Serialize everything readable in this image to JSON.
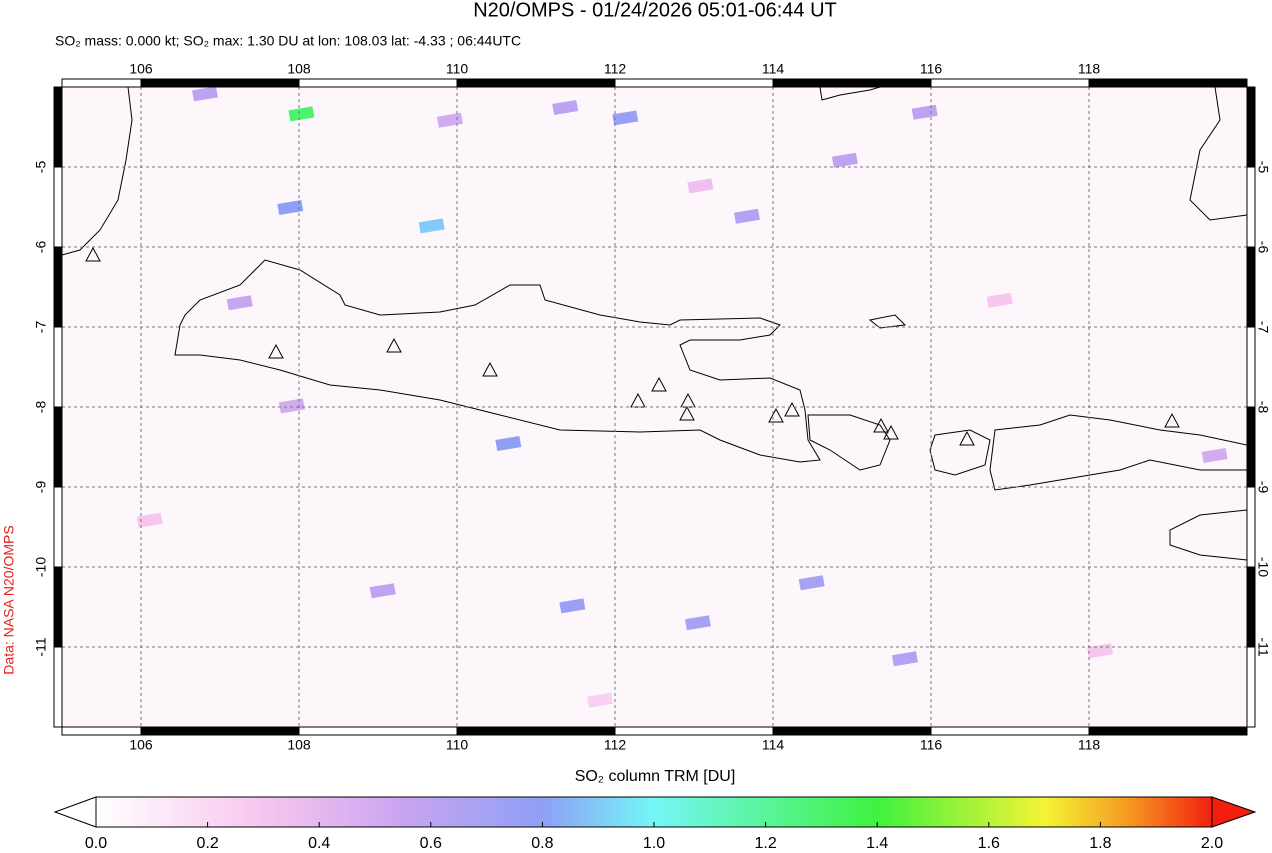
{
  "map": {
    "title": "N20/OMPS - 01/24/2026 05:01-06:44 UT",
    "subtitle": "SO₂ mass: 0.000 kt; SO₂ max: 1.30 DU at lon: 108.03 lat: -4.33 ; 06:44UTC",
    "credit": "Data: NASA N20/OMPS",
    "xlim": [
      105,
      120
    ],
    "ylim": [
      -12,
      -4
    ],
    "xticks": [
      106,
      108,
      110,
      112,
      114,
      116,
      118
    ],
    "yticks": [
      -5,
      -6,
      -7,
      -8,
      -9,
      -10,
      -11
    ],
    "grid": true,
    "pixels": [
      {
        "lon": 108.03,
        "lat": -4.33,
        "value": 1.3
      },
      {
        "lon": 109.68,
        "lat": -5.73,
        "value": 0.9
      },
      {
        "lon": 107.89,
        "lat": -5.5,
        "value": 0.8
      },
      {
        "lon": 110.65,
        "lat": -8.45,
        "value": 0.8
      },
      {
        "lon": 111.46,
        "lat": -10.48,
        "value": 0.75
      },
      {
        "lon": 112.13,
        "lat": -4.38,
        "value": 0.75
      },
      {
        "lon": 113.05,
        "lat": -10.69,
        "value": 0.7
      },
      {
        "lon": 114.49,
        "lat": -10.19,
        "value": 0.7
      },
      {
        "lon": 115.67,
        "lat": -11.14,
        "value": 0.65
      },
      {
        "lon": 113.67,
        "lat": -5.61,
        "value": 0.65
      },
      {
        "lon": 111.37,
        "lat": -4.25,
        "value": 0.6
      },
      {
        "lon": 115.92,
        "lat": -4.31,
        "value": 0.6
      },
      {
        "lon": 114.91,
        "lat": -4.91,
        "value": 0.6
      },
      {
        "lon": 106.81,
        "lat": -4.08,
        "value": 0.6
      },
      {
        "lon": 107.25,
        "lat": -6.69,
        "value": 0.55
      },
      {
        "lon": 109.06,
        "lat": -10.29,
        "value": 0.6
      },
      {
        "lon": 109.91,
        "lat": -4.41,
        "value": 0.5
      },
      {
        "lon": 107.91,
        "lat": -7.98,
        "value": 0.5
      },
      {
        "lon": 119.59,
        "lat": -8.6,
        "value": 0.5
      },
      {
        "lon": 113.08,
        "lat": -5.23,
        "value": 0.35
      },
      {
        "lon": 116.87,
        "lat": -6.66,
        "value": 0.3
      },
      {
        "lon": 106.11,
        "lat": -9.41,
        "value": 0.3
      },
      {
        "lon": 118.14,
        "lat": -11.04,
        "value": 0.3
      },
      {
        "lon": 111.81,
        "lat": -11.66,
        "value": 0.25
      }
    ],
    "colorbar": {
      "label": "SO₂ column TRM [DU]",
      "range": [
        0,
        2
      ],
      "ticks": [
        {
          "value": 0,
          "label": "0.0"
        },
        {
          "value": 0.2,
          "label": "0.2"
        },
        {
          "value": 0.4,
          "label": "0.4"
        },
        {
          "value": 0.6,
          "label": "0.6"
        },
        {
          "value": 0.8,
          "label": "0.8"
        },
        {
          "value": 1,
          "label": "1.0"
        },
        {
          "value": 1.2,
          "label": "1.2"
        },
        {
          "value": 1.4,
          "label": "1.4"
        },
        {
          "value": 1.6,
          "label": "1.6"
        },
        {
          "value": 1.8,
          "label": "1.8"
        },
        {
          "value": 2,
          "label": "2.0"
        }
      ],
      "stops": [
        {
          "value": 0,
          "color": "#ffffff"
        },
        {
          "value": 0.3,
          "color": "#f7c6ef"
        },
        {
          "value": 0.55,
          "color": "#c9a4f0"
        },
        {
          "value": 0.8,
          "color": "#8ea0f6"
        },
        {
          "value": 1,
          "color": "#74f6f6"
        },
        {
          "value": 1.4,
          "color": "#3ff23f"
        },
        {
          "value": 1.7,
          "color": "#f4f434"
        },
        {
          "value": 1.85,
          "color": "#f59a22"
        },
        {
          "value": 2,
          "color": "#f21f10"
        }
      ]
    }
  }
}
